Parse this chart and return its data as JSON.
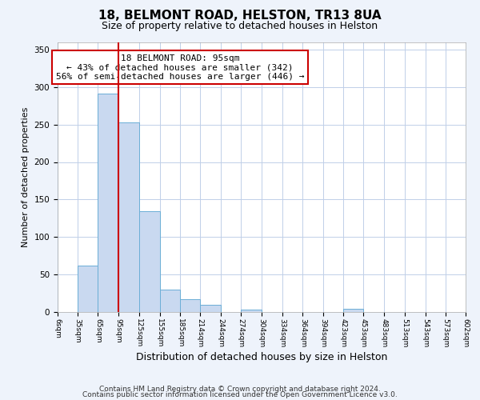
{
  "title1": "18, BELMONT ROAD, HELSTON, TR13 8UA",
  "title2": "Size of property relative to detached houses in Helston",
  "xlabel": "Distribution of detached houses by size in Helston",
  "ylabel": "Number of detached properties",
  "bin_edges": [
    6,
    35,
    65,
    95,
    125,
    155,
    185,
    214,
    244,
    274,
    304,
    334,
    364,
    394,
    423,
    453,
    483,
    513,
    543,
    573,
    602
  ],
  "bar_heights": [
    0,
    62,
    291,
    253,
    134,
    30,
    17,
    10,
    0,
    3,
    0,
    0,
    0,
    0,
    4,
    0,
    0,
    0,
    0,
    0
  ],
  "bar_color": "#c9d9f0",
  "bar_edge_color": "#6baed6",
  "vline_x": 95,
  "vline_color": "#cc0000",
  "annotation_text": "18 BELMONT ROAD: 95sqm\n← 43% of detached houses are smaller (342)\n56% of semi-detached houses are larger (446) →",
  "annotation_box_color": "#ffffff",
  "annotation_box_edge_color": "#cc0000",
  "ylim": [
    0,
    360
  ],
  "yticks": [
    0,
    50,
    100,
    150,
    200,
    250,
    300,
    350
  ],
  "tick_labels": [
    "6sqm",
    "35sqm",
    "65sqm",
    "95sqm",
    "125sqm",
    "155sqm",
    "185sqm",
    "214sqm",
    "244sqm",
    "274sqm",
    "304sqm",
    "334sqm",
    "364sqm",
    "394sqm",
    "423sqm",
    "453sqm",
    "483sqm",
    "513sqm",
    "543sqm",
    "573sqm",
    "602sqm"
  ],
  "footnote1": "Contains HM Land Registry data © Crown copyright and database right 2024.",
  "footnote2": "Contains public sector information licensed under the Open Government Licence v3.0.",
  "bg_color": "#eef3fb",
  "plot_bg_color": "#ffffff",
  "grid_color": "#c0cfe8",
  "title1_fontsize": 11,
  "title2_fontsize": 9,
  "annotation_fontsize": 8,
  "footnote_fontsize": 6.5,
  "xlabel_fontsize": 9,
  "ylabel_fontsize": 8
}
